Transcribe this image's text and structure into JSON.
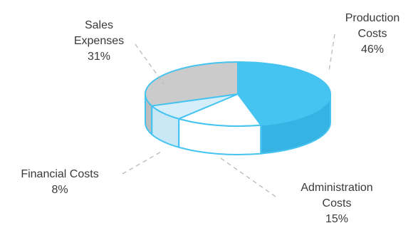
{
  "chart_data": {
    "type": "pie",
    "style": "3d",
    "slices": [
      {
        "label_lines": [
          "Production",
          "Costs"
        ],
        "percent_text": "46%",
        "value": 46,
        "color": "#45c3f1",
        "side_color": "#37b3e3"
      },
      {
        "label_lines": [
          "Administration",
          "Costs"
        ],
        "percent_text": "15%",
        "value": 15,
        "color": "#ffffff",
        "side_color": "#ffffff"
      },
      {
        "label_lines": [
          "Financial Costs"
        ],
        "percent_text": "8%",
        "value": 8,
        "color": "#d6eef9",
        "side_color": "#c8e8f6"
      },
      {
        "label_lines": [
          "Sales",
          "Expenses"
        ],
        "percent_text": "31%",
        "value": 31,
        "color": "#cbcbcb",
        "side_color": "#bdbdbd"
      }
    ],
    "edge_color": "#45c3f1",
    "leader_color": "#b9b9b9"
  }
}
